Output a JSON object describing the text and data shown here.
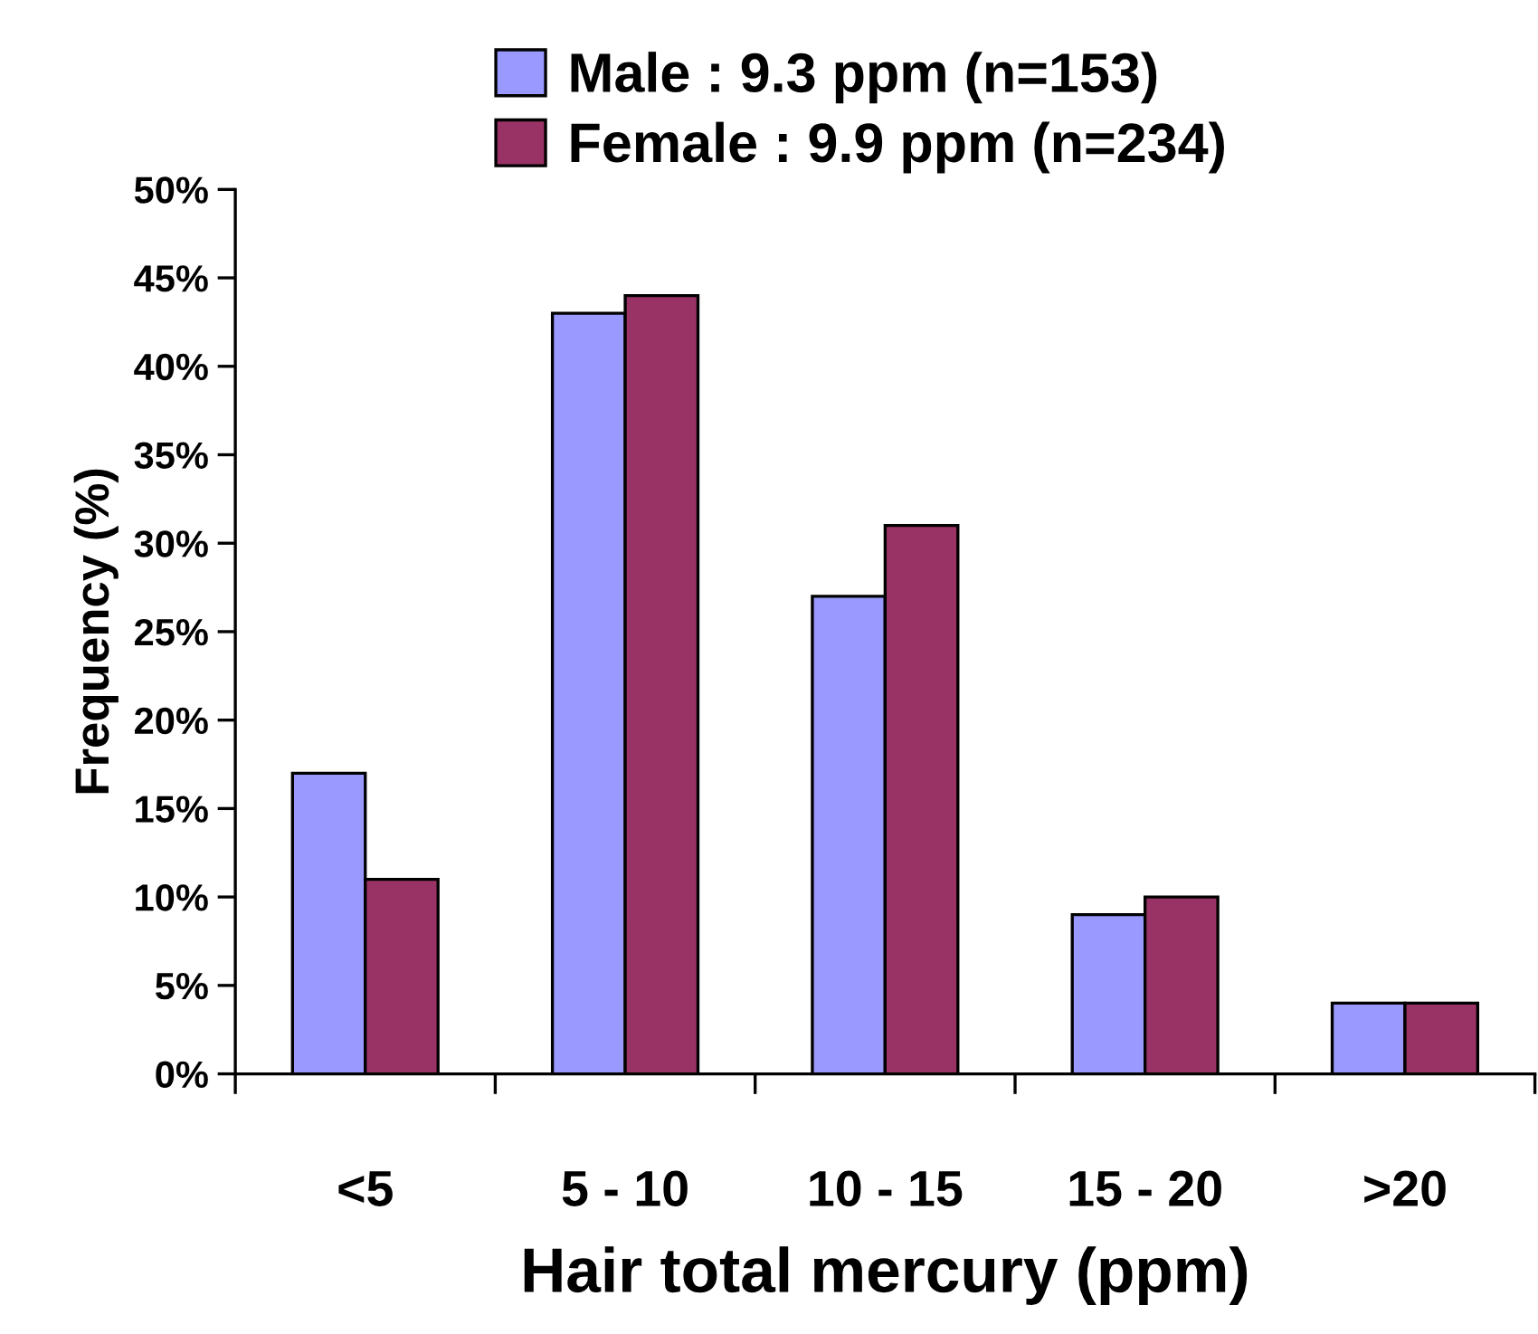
{
  "chart_data": {
    "type": "bar",
    "xlabel": "Hair total mercury (ppm)",
    "ylabel": "Frequency (%)",
    "categories": [
      "<5",
      "5 - 10",
      "10 - 15",
      "15 - 20",
      ">20"
    ],
    "series": [
      {
        "name": "Male : 9.3 ppm (n=153)",
        "color": "#9999ff",
        "values": [
          17,
          43,
          27,
          9,
          4
        ]
      },
      {
        "name": "Female : 9.9 ppm (n=234)",
        "color": "#993366",
        "values": [
          11,
          44,
          31,
          10,
          4
        ]
      }
    ],
    "ylim": [
      0,
      50
    ],
    "yticks": [
      {
        "value": 0,
        "label": "0%"
      },
      {
        "value": 5,
        "label": "5%"
      },
      {
        "value": 10,
        "label": "10%"
      },
      {
        "value": 15,
        "label": "15%"
      },
      {
        "value": 20,
        "label": "20%"
      },
      {
        "value": 25,
        "label": "25%"
      },
      {
        "value": 30,
        "label": "30%"
      },
      {
        "value": 35,
        "label": "35%"
      },
      {
        "value": 40,
        "label": "40%"
      },
      {
        "value": 45,
        "label": "45%"
      },
      {
        "value": 50,
        "label": "50%"
      }
    ],
    "grid": false,
    "legend": "top"
  }
}
